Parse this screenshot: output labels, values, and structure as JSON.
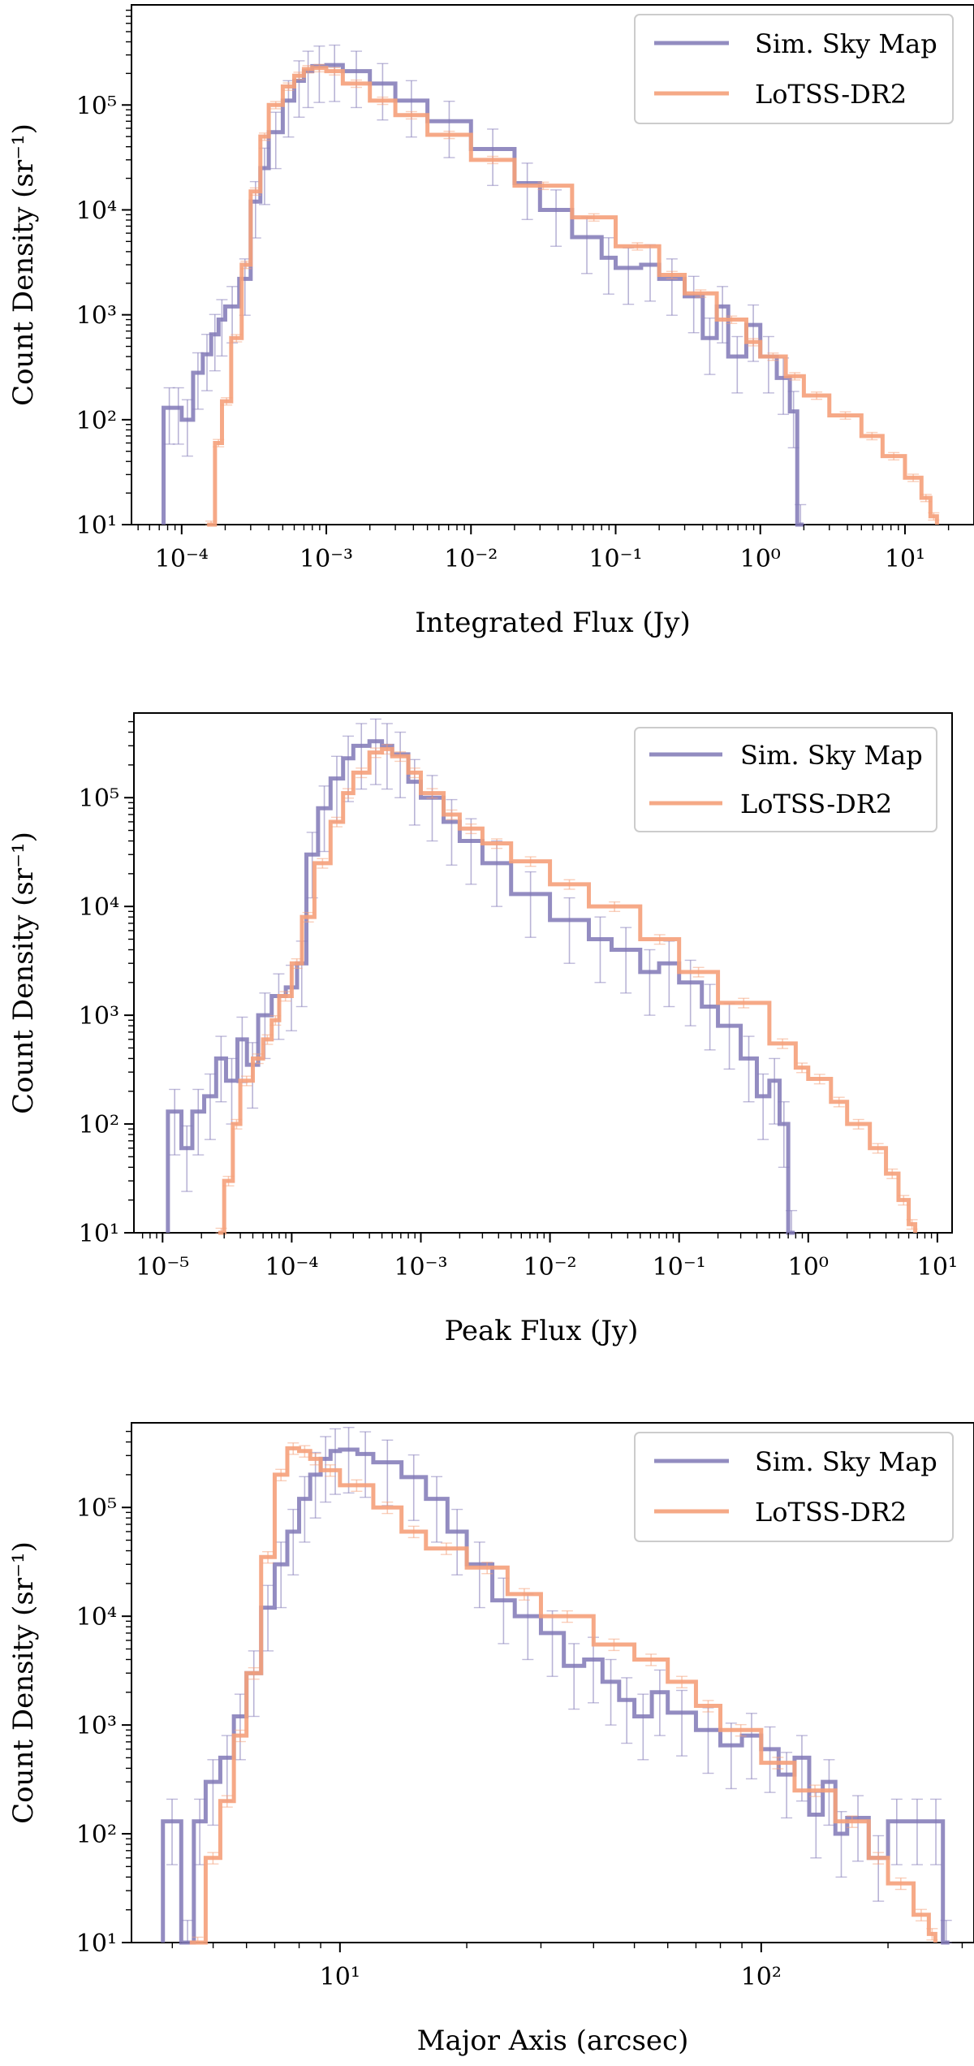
{
  "legend_entries": [
    "Sim. Sky Map",
    "LoTSS-DR2"
  ],
  "colors": {
    "sim": "#8078b6",
    "lotss": "#f5a07a",
    "axis": "#000000"
  },
  "chart_data": [
    {
      "type": "histogram-step",
      "title": "",
      "xlabel": "Integrated Flux (Jy)",
      "ylabel": "Count Density (sr⁻¹)",
      "xscale": "log",
      "yscale": "log",
      "xlim": [
        4.5e-05,
        30
      ],
      "ylim": [
        10,
        900000
      ],
      "xticks": [
        0.0001,
        0.001,
        0.01,
        0.1,
        1,
        10
      ],
      "xtick_labels": [
        "10⁻⁴",
        "10⁻³",
        "10⁻²",
        "10⁻¹",
        "10⁰",
        "10¹"
      ],
      "yticks": [
        10,
        100,
        1000,
        10000,
        100000
      ],
      "ytick_labels": [
        "10¹",
        "10²",
        "10³",
        "10⁴",
        "10⁵"
      ],
      "legend_loc": "upper right",
      "series": [
        {
          "name": "Sim. Sky Map",
          "color": "#8078b6",
          "points": [
            [
              7.5e-05,
              130
            ],
            [
              9e-05,
              130
            ],
            [
              0.0001,
              100
            ],
            [
              0.00012,
              280
            ],
            [
              0.00014,
              420
            ],
            [
              0.00016,
              650
            ],
            [
              0.00018,
              900
            ],
            [
              0.0002,
              1200
            ],
            [
              0.00025,
              2200
            ],
            [
              0.0003,
              12000
            ],
            [
              0.00035,
              25000
            ],
            [
              0.0004,
              55000
            ],
            [
              0.0005,
              110000
            ],
            [
              0.0006,
              170000
            ],
            [
              0.0007,
              210000
            ],
            [
              0.0008,
              235000
            ],
            [
              0.001,
              240000
            ],
            [
              0.0013,
              210000
            ],
            [
              0.002,
              160000
            ],
            [
              0.003,
              110000
            ],
            [
              0.005,
              70000
            ],
            [
              0.01,
              38000
            ],
            [
              0.02,
              18000
            ],
            [
              0.03,
              10000
            ],
            [
              0.05,
              5500
            ],
            [
              0.08,
              3500
            ],
            [
              0.1,
              2800
            ],
            [
              0.15,
              3000
            ],
            [
              0.2,
              2200
            ],
            [
              0.3,
              1500
            ],
            [
              0.4,
              600
            ],
            [
              0.5,
              1200
            ],
            [
              0.6,
              400
            ],
            [
              0.8,
              800
            ],
            [
              1,
              400
            ],
            [
              1.3,
              250
            ],
            [
              1.6,
              120
            ],
            [
              1.8,
              10
            ]
          ],
          "err_rel": 0.55
        },
        {
          "name": "LoTSS-DR2",
          "color": "#f5a07a",
          "points": [
            [
              0.00015,
              10
            ],
            [
              0.00017,
              60
            ],
            [
              0.00019,
              150
            ],
            [
              0.00022,
              600
            ],
            [
              0.00026,
              3000
            ],
            [
              0.0003,
              15000
            ],
            [
              0.00035,
              50000
            ],
            [
              0.0004,
              100000
            ],
            [
              0.0005,
              150000
            ],
            [
              0.0006,
              190000
            ],
            [
              0.0007,
              220000
            ],
            [
              0.0008,
              225000
            ],
            [
              0.001,
              210000
            ],
            [
              0.0013,
              160000
            ],
            [
              0.002,
              110000
            ],
            [
              0.003,
              80000
            ],
            [
              0.005,
              52000
            ],
            [
              0.01,
              30000
            ],
            [
              0.02,
              17000
            ],
            [
              0.05,
              8500
            ],
            [
              0.1,
              4500
            ],
            [
              0.2,
              2400
            ],
            [
              0.3,
              1600
            ],
            [
              0.5,
              900
            ],
            [
              0.8,
              550
            ],
            [
              1,
              400
            ],
            [
              1.5,
              260
            ],
            [
              2,
              170
            ],
            [
              3,
              110
            ],
            [
              5,
              70
            ],
            [
              7,
              45
            ],
            [
              10,
              28
            ],
            [
              13,
              18
            ],
            [
              15,
              12
            ]
          ],
          "err_rel": 0.08
        }
      ]
    },
    {
      "type": "histogram-step",
      "title": "",
      "xlabel": "Peak Flux (Jy)",
      "ylabel": "Count Density (sr⁻¹)",
      "xscale": "log",
      "yscale": "log",
      "xlim": [
        6e-06,
        13
      ],
      "ylim": [
        10,
        600000
      ],
      "xticks": [
        1e-05,
        0.0001,
        0.001,
        0.01,
        0.1,
        1,
        10
      ],
      "xtick_labels": [
        "10⁻⁵",
        "10⁻⁴",
        "10⁻³",
        "10⁻²",
        "10⁻¹",
        "10⁰",
        "10¹"
      ],
      "yticks": [
        10,
        100,
        1000,
        10000,
        100000
      ],
      "ytick_labels": [
        "10¹",
        "10²",
        "10³",
        "10⁴",
        "10⁵"
      ],
      "legend_loc": "upper right",
      "series": [
        {
          "name": "Sim. Sky Map",
          "color": "#8078b6",
          "points": [
            [
              1.1e-05,
              130
            ],
            [
              1.4e-05,
              60
            ],
            [
              1.7e-05,
              130
            ],
            [
              2.1e-05,
              180
            ],
            [
              2.6e-05,
              400
            ],
            [
              3.1e-05,
              250
            ],
            [
              3.8e-05,
              600
            ],
            [
              4.5e-05,
              350
            ],
            [
              5.5e-05,
              1000
            ],
            [
              7e-05,
              1500
            ],
            [
              9e-05,
              1800
            ],
            [
              0.00011,
              3000
            ],
            [
              0.00013,
              30000
            ],
            [
              0.00016,
              80000
            ],
            [
              0.0002,
              150000
            ],
            [
              0.00025,
              230000
            ],
            [
              0.0003,
              300000
            ],
            [
              0.0004,
              330000
            ],
            [
              0.0005,
              300000
            ],
            [
              0.0006,
              250000
            ],
            [
              0.0008,
              140000
            ],
            [
              0.001,
              100000
            ],
            [
              0.0015,
              60000
            ],
            [
              0.002,
              40000
            ],
            [
              0.003,
              25000
            ],
            [
              0.005,
              13000
            ],
            [
              0.01,
              7500
            ],
            [
              0.02,
              5000
            ],
            [
              0.03,
              4000
            ],
            [
              0.05,
              2500
            ],
            [
              0.07,
              3000
            ],
            [
              0.1,
              2000
            ],
            [
              0.15,
              1200
            ],
            [
              0.2,
              800
            ],
            [
              0.3,
              400
            ],
            [
              0.4,
              180
            ],
            [
              0.5,
              250
            ],
            [
              0.6,
              100
            ],
            [
              0.7,
              10
            ]
          ],
          "err_rel": 0.6
        },
        {
          "name": "LoTSS-DR2",
          "color": "#f5a07a",
          "points": [
            [
              2.7e-05,
              10
            ],
            [
              3e-05,
              30
            ],
            [
              3.5e-05,
              100
            ],
            [
              4e-05,
              250
            ],
            [
              5e-05,
              400
            ],
            [
              6e-05,
              600
            ],
            [
              7e-05,
              900
            ],
            [
              8e-05,
              1500
            ],
            [
              0.0001,
              3000
            ],
            [
              0.00012,
              8000
            ],
            [
              0.00015,
              25000
            ],
            [
              0.0002,
              60000
            ],
            [
              0.00025,
              110000
            ],
            [
              0.0003,
              170000
            ],
            [
              0.0004,
              260000
            ],
            [
              0.0005,
              280000
            ],
            [
              0.0006,
              240000
            ],
            [
              0.0008,
              170000
            ],
            [
              0.001,
              110000
            ],
            [
              0.0015,
              70000
            ],
            [
              0.002,
              52000
            ],
            [
              0.003,
              38000
            ],
            [
              0.005,
              26000
            ],
            [
              0.01,
              16000
            ],
            [
              0.02,
              10000
            ],
            [
              0.05,
              5000
            ],
            [
              0.1,
              2500
            ],
            [
              0.2,
              1300
            ],
            [
              0.5,
              550
            ],
            [
              0.8,
              330
            ],
            [
              1,
              260
            ],
            [
              1.5,
              160
            ],
            [
              2,
              100
            ],
            [
              3,
              60
            ],
            [
              4,
              35
            ],
            [
              5,
              20
            ],
            [
              6,
              12
            ]
          ],
          "err_rel": 0.1
        }
      ]
    },
    {
      "type": "histogram-step",
      "title": "",
      "xlabel": "Major Axis (arcsec)",
      "ylabel": "Count Density (sr⁻¹)",
      "xscale": "log",
      "yscale": "log",
      "xlim": [
        3.2,
        320
      ],
      "ylim": [
        10,
        600000
      ],
      "xticks": [
        10,
        100
      ],
      "xtick_labels": [
        "10¹",
        "10²"
      ],
      "yticks": [
        10,
        100,
        1000,
        10000,
        100000
      ],
      "ytick_labels": [
        "10¹",
        "10²",
        "10³",
        "10⁴",
        "10⁵"
      ],
      "legend_loc": "upper right",
      "series": [
        {
          "name": "Sim. Sky Map",
          "color": "#8078b6",
          "points": [
            [
              3.8,
              130
            ],
            [
              4.2,
              10
            ],
            [
              4.5,
              130
            ],
            [
              4.8,
              300
            ],
            [
              5.2,
              500
            ],
            [
              5.6,
              1200
            ],
            [
              6,
              3000
            ],
            [
              6.5,
              12000
            ],
            [
              7,
              30000
            ],
            [
              7.5,
              60000
            ],
            [
              8,
              120000
            ],
            [
              8.5,
              200000
            ],
            [
              9,
              280000
            ],
            [
              9.5,
              330000
            ],
            [
              10,
              340000
            ],
            [
              11,
              310000
            ],
            [
              12,
              260000
            ],
            [
              14,
              190000
            ],
            [
              16,
              120000
            ],
            [
              18,
              60000
            ],
            [
              20,
              30000
            ],
            [
              23,
              14000
            ],
            [
              26,
              10000
            ],
            [
              30,
              7000
            ],
            [
              34,
              3500
            ],
            [
              38,
              4000
            ],
            [
              42,
              2500
            ],
            [
              46,
              1700
            ],
            [
              50,
              1200
            ],
            [
              55,
              2000
            ],
            [
              60,
              1300
            ],
            [
              70,
              900
            ],
            [
              80,
              650
            ],
            [
              90,
              800
            ],
            [
              100,
              600
            ],
            [
              110,
              350
            ],
            [
              120,
              500
            ],
            [
              130,
              150
            ],
            [
              140,
              300
            ],
            [
              150,
              100
            ],
            [
              160,
              140
            ],
            [
              180,
              60
            ],
            [
              200,
              130
            ],
            [
              220,
              130
            ],
            [
              250,
              130
            ],
            [
              270,
              10
            ]
          ],
          "err_rel": 0.6
        },
        {
          "name": "LoTSS-DR2",
          "color": "#f5a07a",
          "points": [
            [
              4.4,
              10
            ],
            [
              4.8,
              60
            ],
            [
              5.2,
              200
            ],
            [
              5.6,
              800
            ],
            [
              6,
              3000
            ],
            [
              6.5,
              35000
            ],
            [
              7,
              200000
            ],
            [
              7.5,
              350000
            ],
            [
              8,
              330000
            ],
            [
              8.5,
              280000
            ],
            [
              9,
              220000
            ],
            [
              10,
              160000
            ],
            [
              12,
              100000
            ],
            [
              14,
              60000
            ],
            [
              16,
              42000
            ],
            [
              20,
              28000
            ],
            [
              25,
              16000
            ],
            [
              30,
              10000
            ],
            [
              40,
              5500
            ],
            [
              50,
              4000
            ],
            [
              60,
              2500
            ],
            [
              70,
              1500
            ],
            [
              80,
              900
            ],
            [
              100,
              450
            ],
            [
              120,
              250
            ],
            [
              150,
              130
            ],
            [
              180,
              60
            ],
            [
              200,
              35
            ],
            [
              230,
              18
            ],
            [
              250,
              12
            ]
          ],
          "err_rel": 0.12
        }
      ]
    }
  ]
}
